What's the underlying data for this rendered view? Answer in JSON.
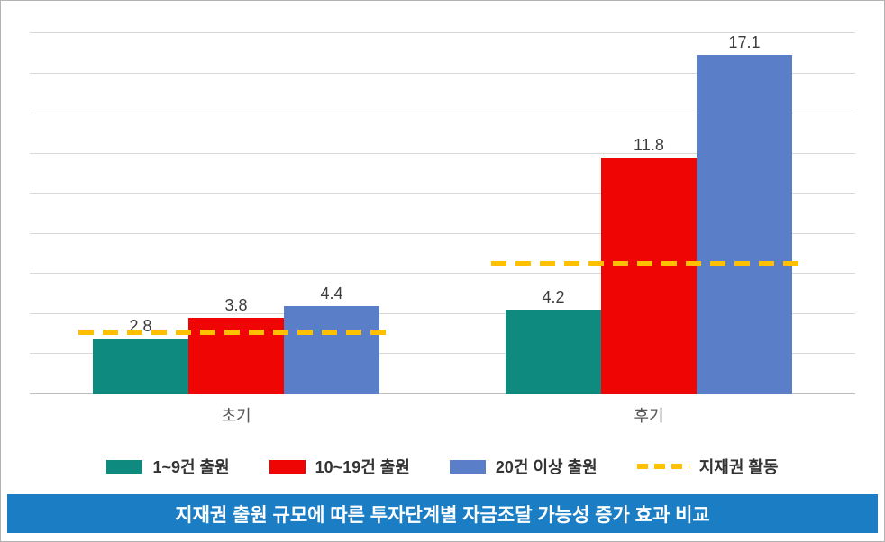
{
  "chart_data": {
    "type": "bar",
    "title": "지재권 출원 규모에 따른 투자단계별 자금조달 가능성 증가 효과 비교",
    "categories": [
      "초기",
      "후기"
    ],
    "series": [
      {
        "name": "1~9건 출원",
        "color": "#0f8a7e",
        "values": [
          2.8,
          4.2
        ]
      },
      {
        "name": "10~19건 출원",
        "color": "#f00505",
        "values": [
          3.8,
          11.8
        ]
      },
      {
        "name": "20건 이상 출원",
        "color": "#5b7ec8",
        "values": [
          4.4,
          17.1
        ]
      }
    ],
    "reference_line": {
      "name": "지재권 활동",
      "color": "#ffc000",
      "style": "dashed",
      "values": [
        3.1,
        6.5
      ]
    },
    "value_labels": [
      "2.8",
      "3.8",
      "4.4",
      "4.2",
      "11.8",
      "17.1"
    ],
    "ylim": [
      0,
      18
    ],
    "grid_step": 2,
    "grid": true,
    "legend_position": "bottom"
  },
  "banner": {
    "bg_color": "#1b7ec5",
    "text_color": "#ffffff"
  },
  "colors": {
    "grid": "#d8d8d8",
    "value_label_text": "#3d3d3d",
    "axis_label_text": "#555555"
  }
}
